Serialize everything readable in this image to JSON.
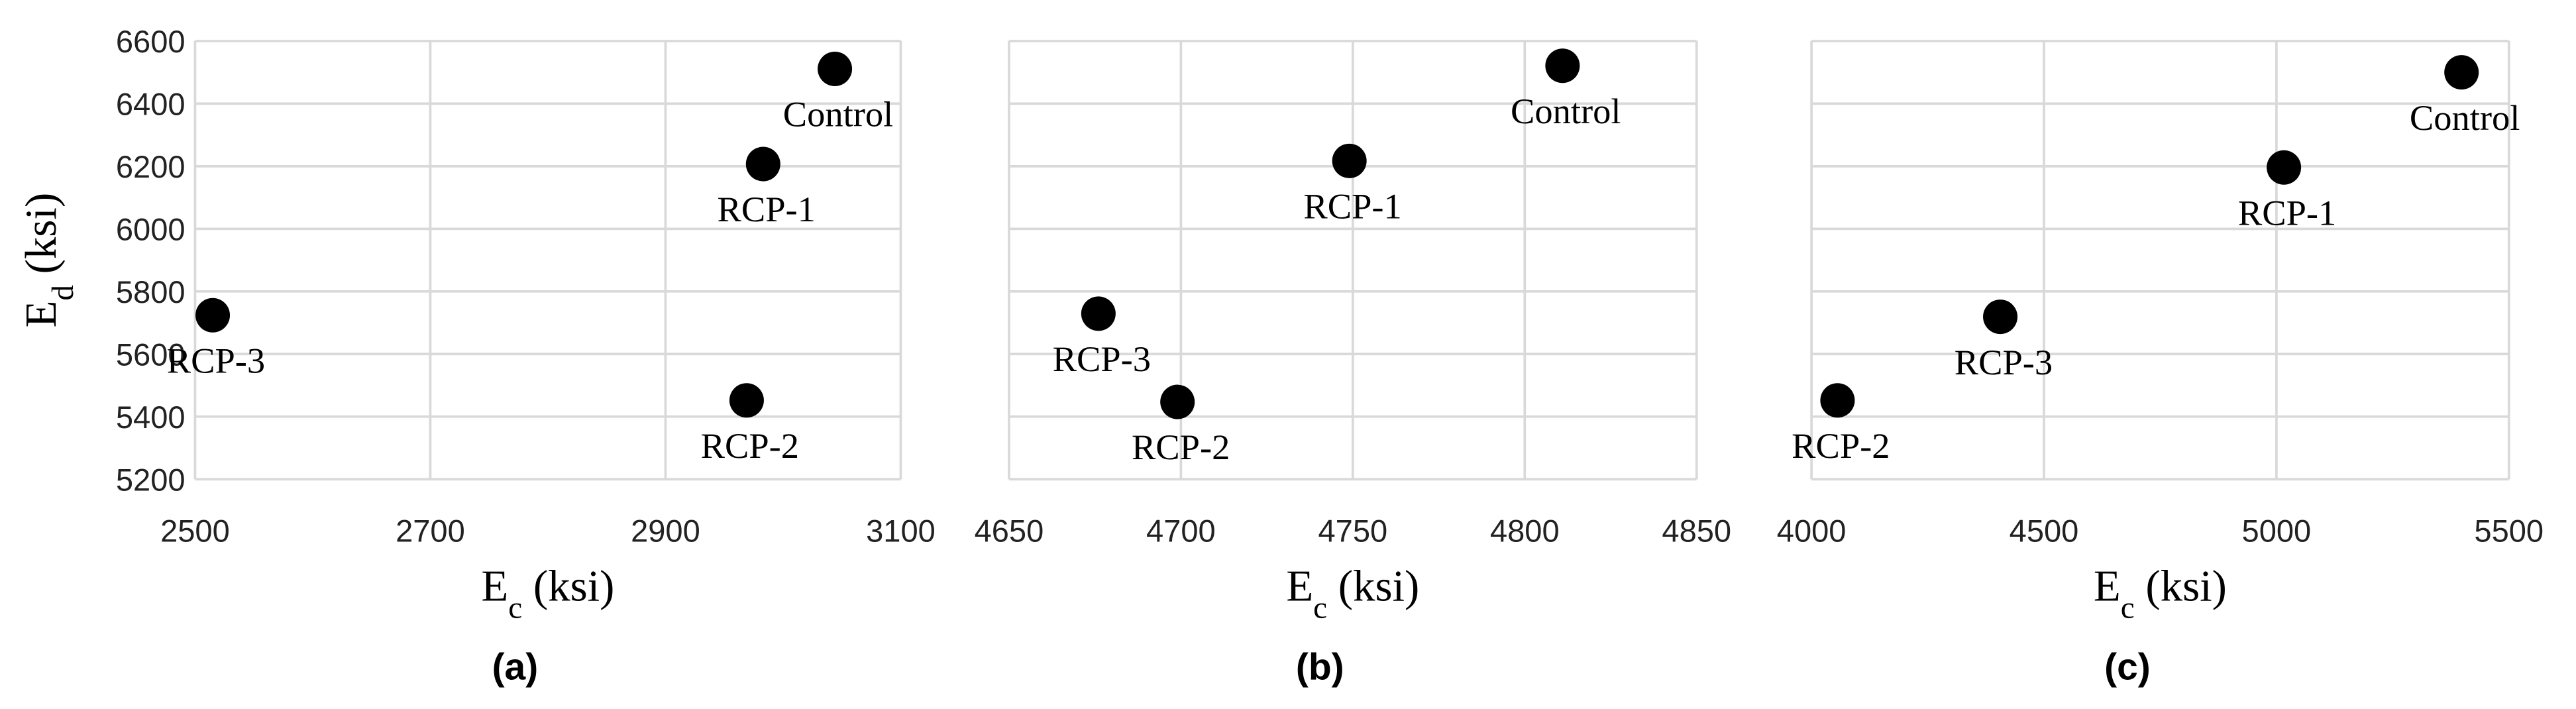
{
  "chart_data": [
    {
      "type": "scatter",
      "caption": "(a)",
      "x_label": [
        "E",
        "c",
        " (ksi)"
      ],
      "y_label": [
        "E",
        "d",
        " (ksi)"
      ],
      "xlim": [
        2500,
        3100
      ],
      "xticks": [
        2500,
        2700,
        2900,
        3100
      ],
      "ylim": [
        5200,
        6600
      ],
      "yticks": [
        5200,
        5400,
        5600,
        5800,
        6000,
        6200,
        6400,
        6600
      ],
      "y_tick_labels": true,
      "grid": true,
      "series": [
        {
          "color": "#000000",
          "x": [
            3044,
            2983,
            2515,
            2969
          ],
          "y": [
            6511,
            6207,
            5724,
            5452
          ],
          "labels": [
            "Control",
            "RCP-1",
            "RCP-3",
            "RCP-2"
          ]
        }
      ]
    },
    {
      "type": "scatter",
      "caption": "(b)",
      "x_label": [
        "E",
        "c",
        " (ksi)"
      ],
      "xlim": [
        4650,
        4850
      ],
      "xticks": [
        4650,
        4700,
        4750,
        4800,
        4850
      ],
      "ylim": [
        5200,
        6600
      ],
      "yticks": [
        5200,
        5400,
        5600,
        5800,
        6000,
        6200,
        6400,
        6600
      ],
      "y_tick_labels": false,
      "grid": true,
      "series": [
        {
          "color": "#000000",
          "x": [
            4811,
            4749,
            4676,
            4699
          ],
          "y": [
            6521,
            6217,
            5729,
            5447
          ],
          "labels": [
            "Control",
            "RCP-1",
            "RCP-3",
            "RCP-2"
          ]
        }
      ]
    },
    {
      "type": "scatter",
      "caption": "(c)",
      "x_label": [
        "E",
        "c",
        " (ksi)"
      ],
      "xlim": [
        4000,
        5500
      ],
      "xticks": [
        4000,
        4500,
        5000,
        5500
      ],
      "ylim": [
        5200,
        6600
      ],
      "yticks": [
        5200,
        5400,
        5600,
        5800,
        6000,
        6200,
        6400,
        6600
      ],
      "y_tick_labels": false,
      "grid": true,
      "series": [
        {
          "color": "#000000",
          "x": [
            5398,
            5016,
            4406,
            4056
          ],
          "y": [
            6500,
            6196,
            5719,
            5452
          ],
          "labels": [
            "Control",
            "RCP-1",
            "RCP-3",
            "RCP-2"
          ]
        }
      ]
    }
  ]
}
